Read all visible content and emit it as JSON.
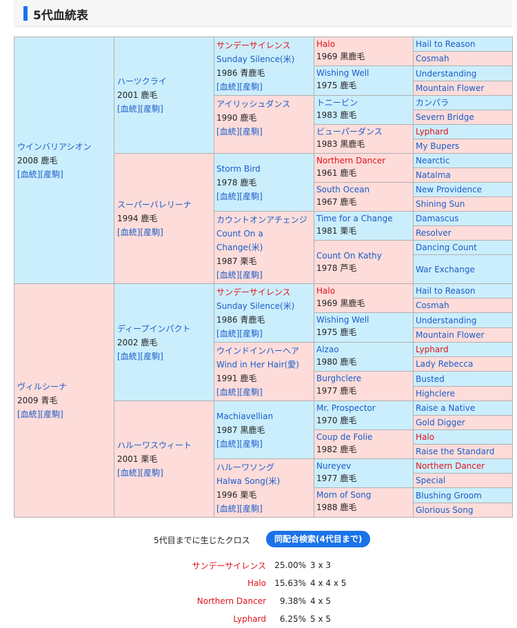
{
  "page": {
    "title": "5代血統表",
    "accent": "#1a73e8",
    "male_bg": "#cbeefc",
    "female_bg": "#fddcda",
    "red_name": "#e0121a",
    "link_blue": "#1a5cc8"
  },
  "links": {
    "pedigree": "血統",
    "offspring": "産駒"
  },
  "pedigree": {
    "s": {
      "name": "ウインバリアシオン",
      "birth": "2008 鹿毛"
    },
    "d": {
      "name": "ヴィルシーナ",
      "birth": "2009 青毛"
    },
    "ss": {
      "name": "ハーツクライ",
      "birth": "2001 鹿毛"
    },
    "sd": {
      "name": "スーパーバレリーナ",
      "birth": "1994 鹿毛"
    },
    "ds": {
      "name": "ディープインパクト",
      "birth": "2002 鹿毛"
    },
    "dd": {
      "name": "ハルーワスウィート",
      "birth": "2001 栗毛"
    },
    "sss": {
      "name": "サンデーサイレンス",
      "name2": "Sunday Silence(米)",
      "birth": "1986 青鹿毛"
    },
    "ssd": {
      "name": "アイリッシュダンス",
      "birth": "1990 鹿毛"
    },
    "sds": {
      "name": "Storm Bird",
      "birth": "1978 鹿毛"
    },
    "sdd": {
      "name": "カウントオンアチェンジ",
      "name2": "Count On a Change(米)",
      "birth": "1987 栗毛"
    },
    "dss": {
      "name": "サンデーサイレンス",
      "name2": "Sunday Silence(米)",
      "birth": "1986 青鹿毛"
    },
    "dsd": {
      "name": "ウインドインハーヘア",
      "name2": "Wind in Her Hair(愛)",
      "birth": "1991 鹿毛"
    },
    "dds": {
      "name": "Machiavellian",
      "birth": "1987 黒鹿毛"
    },
    "ddd": {
      "name": "ハルーワソング",
      "name2": "Halwa Song(米)",
      "birth": "1996 栗毛"
    },
    "g4": [
      {
        "name": "Halo",
        "birth": "1969 黒鹿毛"
      },
      {
        "name": "Wishing Well",
        "birth": "1975 鹿毛"
      },
      {
        "name": "トニービン",
        "birth": "1983 鹿毛"
      },
      {
        "name": "ビューパーダンス",
        "birth": "1983 黒鹿毛"
      },
      {
        "name": "Northern Dancer",
        "birth": "1961 鹿毛"
      },
      {
        "name": "South Ocean",
        "birth": "1967 鹿毛"
      },
      {
        "name": "Time for a Change",
        "birth": "1981 栗毛"
      },
      {
        "name": "Count On Kathy",
        "birth": "1978 芦毛"
      },
      {
        "name": "Halo",
        "birth": "1969 黒鹿毛"
      },
      {
        "name": "Wishing Well",
        "birth": "1975 鹿毛"
      },
      {
        "name": "Alzao",
        "birth": "1980 鹿毛"
      },
      {
        "name": "Burghclere",
        "birth": "1977 鹿毛"
      },
      {
        "name": "Mr. Prospector",
        "birth": "1970 鹿毛"
      },
      {
        "name": "Coup de Folie",
        "birth": "1982 鹿毛"
      },
      {
        "name": "Nureyev",
        "birth": "1977 鹿毛"
      },
      {
        "name": "Morn of Song",
        "birth": "1988 鹿毛"
      }
    ],
    "g5": [
      "Hail to Reason",
      "Cosmah",
      "Understanding",
      "Mountain Flower",
      "カンパラ",
      "Severn Bridge",
      "Lyphard",
      "My Bupers",
      "Nearctic",
      "Natalma",
      "New Providence",
      "Shining Sun",
      "Damascus",
      "Resolver",
      "Dancing Count",
      "War Exchange",
      "Hail to Reason",
      "Cosmah",
      "Understanding",
      "Mountain Flower",
      "Lyphard",
      "Lady Rebecca",
      "Busted",
      "Highclere",
      "Raise a Native",
      "Gold Digger",
      "Halo",
      "Raise the Standard",
      "Northern Dancer",
      "Special",
      "Blushing Groom",
      "Glorious Song"
    ]
  },
  "crosses": {
    "label": "5代目までに生じたクロス",
    "button": "同配合検索(4代目まで)",
    "items": [
      {
        "name": "サンデーサイレンス",
        "pct": "25.00%",
        "pattern": "3 x 3"
      },
      {
        "name": "Halo",
        "pct": "15.63%",
        "pattern": "4 x 4 x 5"
      },
      {
        "name": "Northern Dancer",
        "pct": "9.38%",
        "pattern": "4 x 5"
      },
      {
        "name": "Lyphard",
        "pct": "6.25%",
        "pattern": "5 x 5"
      }
    ]
  }
}
